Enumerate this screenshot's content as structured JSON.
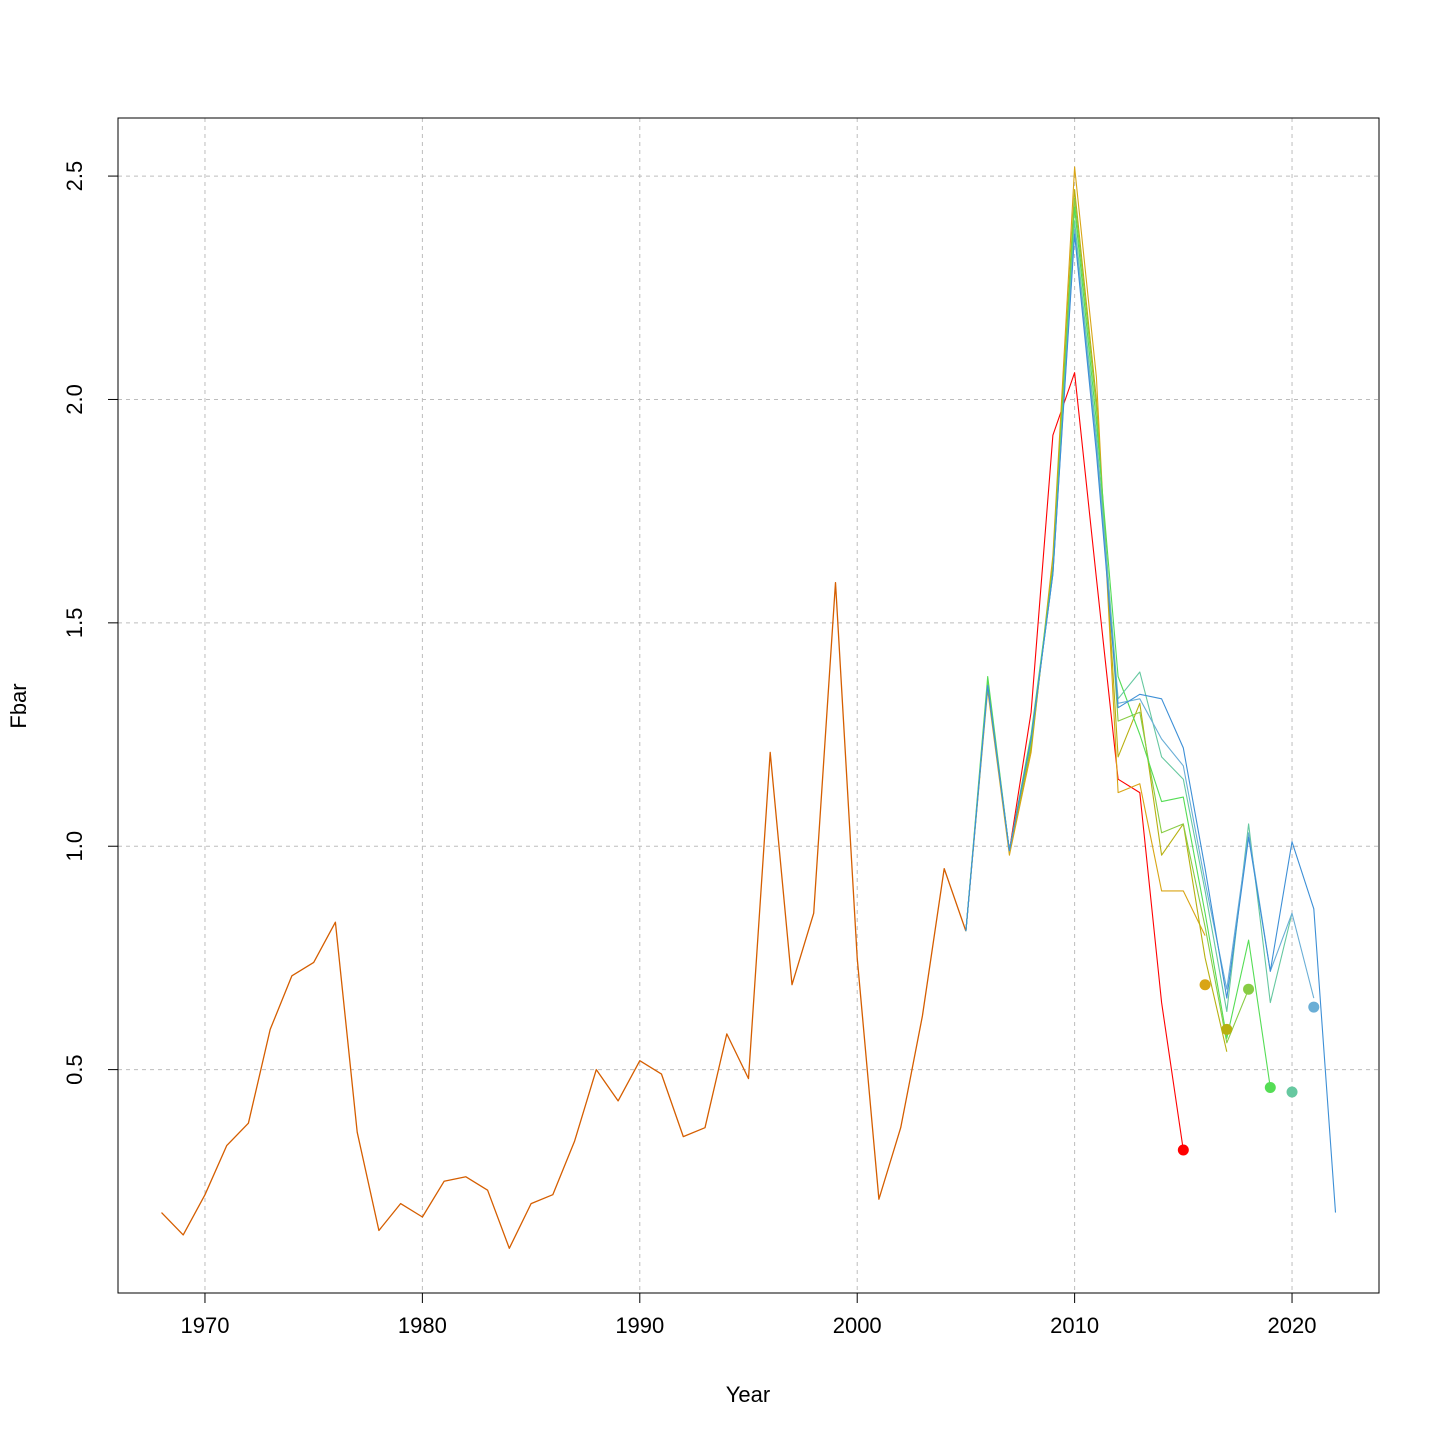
{
  "chart_data": {
    "type": "line",
    "title": "",
    "xlabel": "Year",
    "ylabel": "Fbar",
    "xlim": [
      1966,
      2024
    ],
    "ylim": [
      0.0,
      2.63
    ],
    "grid": true,
    "xticks": [
      1970,
      1980,
      1990,
      2000,
      2010,
      2020
    ],
    "yticks": [
      0.5,
      1.0,
      1.5,
      2.0,
      2.5
    ],
    "xtick_labels": [
      "1970",
      "1980",
      "1990",
      "2000",
      "2010",
      "2020"
    ],
    "ytick_labels": [
      "0.5",
      "1.0",
      "1.5",
      "2.0",
      "2.5"
    ],
    "base_years": [
      1968,
      1969,
      1970,
      1971,
      1972,
      1973,
      1974,
      1975,
      1976,
      1977,
      1978,
      1979,
      1980,
      1981,
      1982,
      1983,
      1984,
      1985,
      1986,
      1987,
      1988,
      1989,
      1990,
      1991,
      1992,
      1993,
      1994,
      1995,
      1996,
      1997,
      1998,
      1999,
      2000,
      2001,
      2002,
      2003,
      2004,
      2005
    ],
    "base_values": [
      0.18,
      0.13,
      0.22,
      0.33,
      0.38,
      0.59,
      0.71,
      0.74,
      0.83,
      0.36,
      0.14,
      0.2,
      0.17,
      0.25,
      0.26,
      0.23,
      0.1,
      0.2,
      0.22,
      0.34,
      0.5,
      0.43,
      0.52,
      0.49,
      0.35,
      0.37,
      0.58,
      0.48,
      1.21,
      0.69,
      0.85,
      1.59,
      0.75,
      0.21,
      0.37,
      0.62,
      0.95,
      0.81
    ],
    "series": [
      {
        "color": "#ff0000",
        "years": [
          2005,
          2006,
          2007,
          2008,
          2009,
          2010,
          2011,
          2012,
          2013,
          2014,
          2015
        ],
        "values": [
          0.81,
          1.36,
          0.99,
          1.3,
          1.92,
          2.06,
          1.6,
          1.15,
          1.12,
          0.65,
          0.32
        ],
        "marker": {
          "year": 2015,
          "value": 0.32
        }
      },
      {
        "color": "#d9a515",
        "years": [
          2005,
          2006,
          2007,
          2008,
          2009,
          2010,
          2011,
          2012,
          2013,
          2014,
          2015,
          2016
        ],
        "values": [
          0.81,
          1.35,
          0.98,
          1.21,
          1.65,
          2.52,
          2.05,
          1.12,
          1.14,
          0.9,
          0.9,
          0.8
        ],
        "marker": {
          "year": 2016,
          "value": 0.69
        }
      },
      {
        "color": "#b8b010",
        "years": [
          2005,
          2006,
          2007,
          2008,
          2009,
          2010,
          2011,
          2012,
          2013,
          2014,
          2015,
          2016,
          2017
        ],
        "values": [
          0.81,
          1.36,
          0.99,
          1.22,
          1.63,
          2.47,
          2.0,
          1.2,
          1.32,
          0.98,
          1.05,
          0.75,
          0.54
        ],
        "marker": {
          "year": 2017,
          "value": 0.59
        }
      },
      {
        "color": "#88cc44",
        "years": [
          2005,
          2006,
          2007,
          2008,
          2009,
          2010,
          2011,
          2012,
          2013,
          2014,
          2015,
          2016,
          2017,
          2018
        ],
        "values": [
          0.81,
          1.37,
          0.99,
          1.23,
          1.62,
          2.45,
          1.98,
          1.28,
          1.3,
          1.03,
          1.05,
          0.82,
          0.56,
          0.68
        ],
        "marker": {
          "year": 2018,
          "value": 0.68
        }
      },
      {
        "color": "#55dd55",
        "years": [
          2005,
          2006,
          2007,
          2008,
          2009,
          2010,
          2011,
          2012,
          2013,
          2014,
          2015,
          2016,
          2017,
          2018,
          2019
        ],
        "values": [
          0.81,
          1.38,
          0.99,
          1.25,
          1.62,
          2.43,
          1.95,
          1.38,
          1.25,
          1.1,
          1.11,
          0.85,
          0.57,
          0.79,
          0.46
        ],
        "marker": {
          "year": 2019,
          "value": 0.46
        }
      },
      {
        "color": "#66c8a0",
        "years": [
          2005,
          2006,
          2007,
          2008,
          2009,
          2010,
          2011,
          2012,
          2013,
          2014,
          2015,
          2016,
          2017,
          2018,
          2019,
          2020
        ],
        "values": [
          0.81,
          1.36,
          0.99,
          1.24,
          1.61,
          2.4,
          1.92,
          1.33,
          1.39,
          1.2,
          1.15,
          0.9,
          0.63,
          1.05,
          0.65,
          0.85
        ],
        "marker": {
          "year": 2020,
          "value": 0.45
        }
      },
      {
        "color": "#6aaed6",
        "years": [
          2005,
          2006,
          2007,
          2008,
          2009,
          2010,
          2011,
          2012,
          2013,
          2014,
          2015,
          2016,
          2017,
          2018,
          2019,
          2020,
          2021
        ],
        "values": [
          0.81,
          1.36,
          0.99,
          1.24,
          1.61,
          2.38,
          1.9,
          1.32,
          1.33,
          1.24,
          1.18,
          0.92,
          0.68,
          1.03,
          0.72,
          0.85,
          0.66
        ],
        "marker": {
          "year": 2021,
          "value": 0.64
        }
      },
      {
        "color": "#3d8fd6",
        "years": [
          2005,
          2006,
          2007,
          2008,
          2009,
          2010,
          2011,
          2012,
          2013,
          2014,
          2015,
          2016,
          2017,
          2018,
          2019,
          2020,
          2021,
          2022
        ],
        "values": [
          0.81,
          1.36,
          0.99,
          1.24,
          1.61,
          2.37,
          1.88,
          1.31,
          1.34,
          1.33,
          1.22,
          0.95,
          0.66,
          1.02,
          0.72,
          1.01,
          0.86,
          0.18
        ],
        "marker": null
      }
    ],
    "base_color": "#d55e00"
  }
}
